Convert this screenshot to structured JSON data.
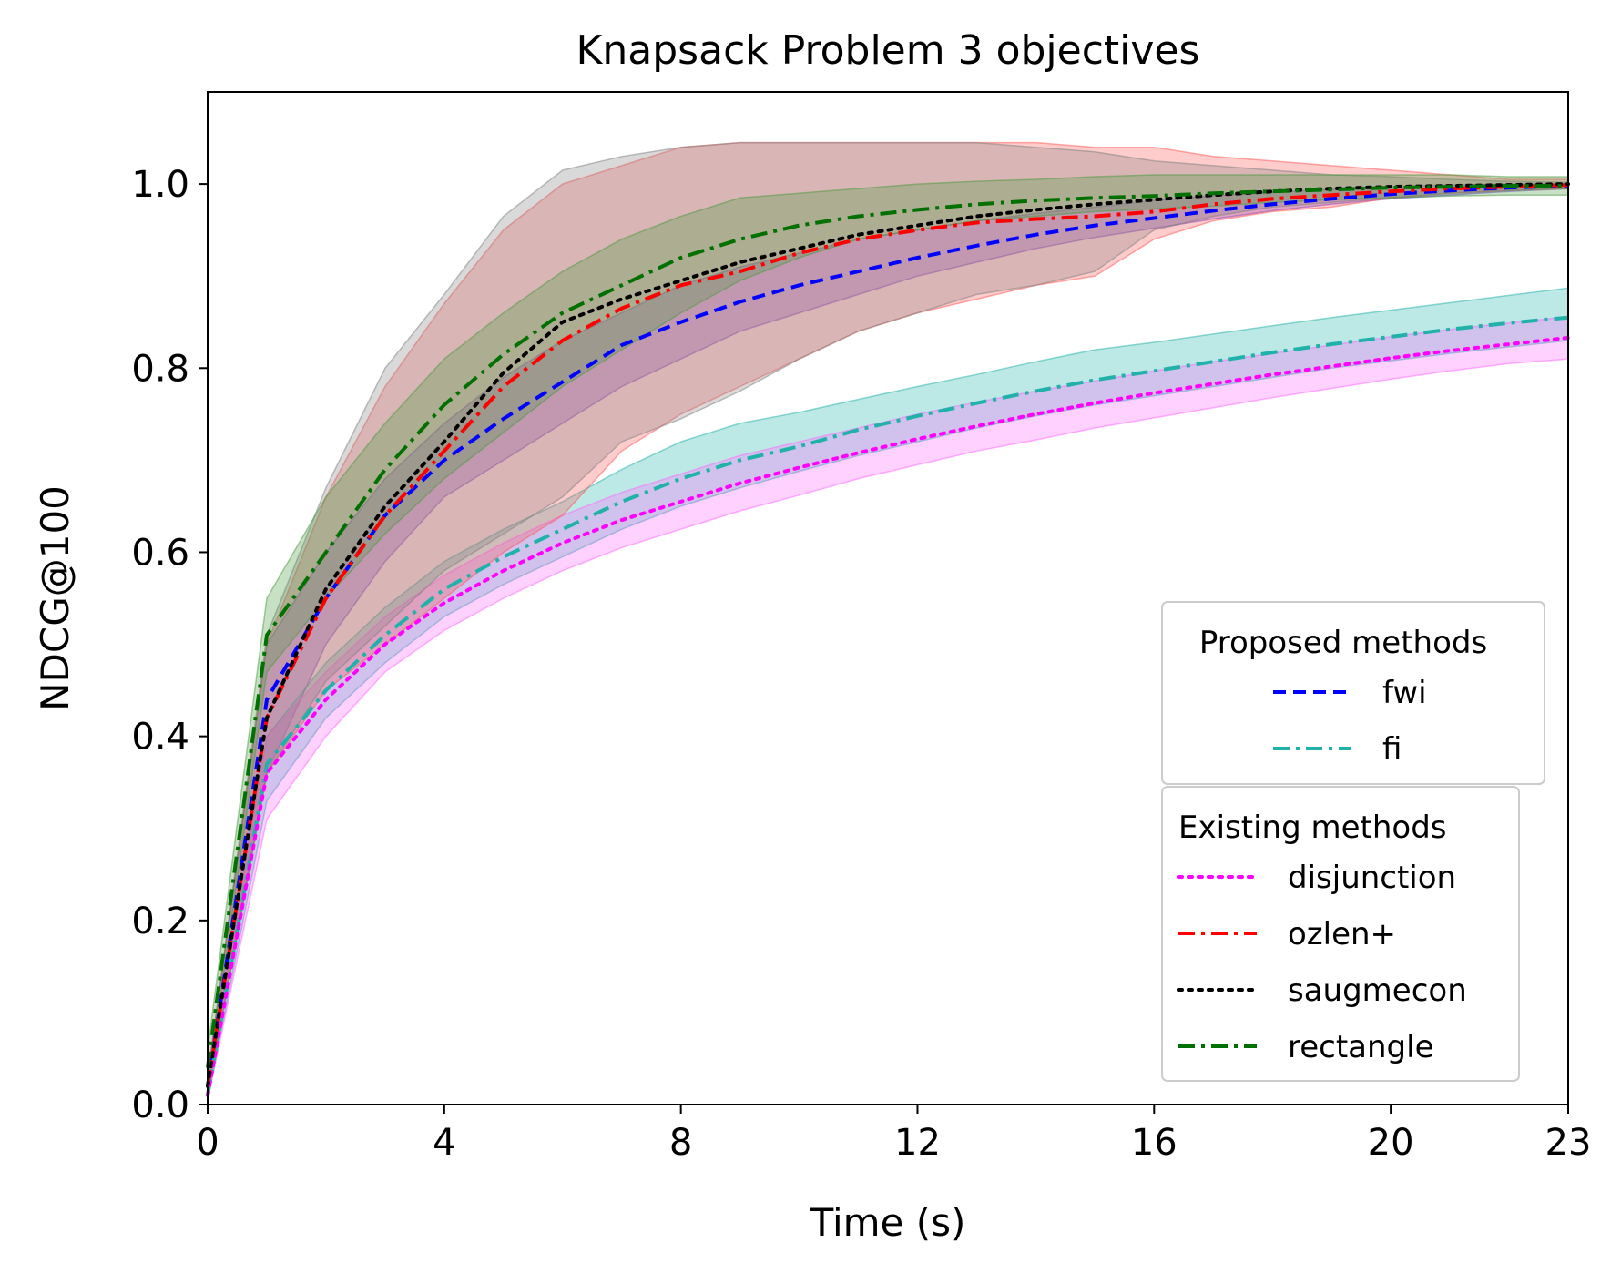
{
  "chart_data": {
    "type": "line",
    "title": "Knapsack Problem 3 objectives",
    "xlabel": "Time (s)",
    "ylabel": "NDCG@100",
    "xlim": [
      0,
      23
    ],
    "ylim": [
      0,
      1.1
    ],
    "xticks": [
      0,
      4,
      8,
      12,
      16,
      20,
      23
    ],
    "yticks": [
      0.0,
      0.2,
      0.4,
      0.6,
      0.8,
      1.0
    ],
    "ytick_labels": [
      "0.0",
      "0.2",
      "0.4",
      "0.6",
      "0.8",
      "1.0"
    ],
    "grid": false,
    "legend_groups": [
      {
        "title": "Proposed methods",
        "placement": "right",
        "entries": [
          "fwi",
          "fi"
        ]
      },
      {
        "title": "Existing methods",
        "placement": "bottom-right",
        "entries": [
          "disjunction",
          "ozlen+",
          "saugmecon",
          "rectangle"
        ]
      }
    ],
    "x": [
      0,
      1,
      2,
      3,
      4,
      5,
      6,
      7,
      8,
      9,
      10,
      11,
      12,
      13,
      14,
      15,
      16,
      17,
      18,
      19,
      20,
      21,
      22,
      23
    ],
    "series": [
      {
        "name": "fwi",
        "color": "#0000ff",
        "dash": "dashed",
        "values": [
          0.02,
          0.44,
          0.55,
          0.64,
          0.7,
          0.745,
          0.785,
          0.825,
          0.85,
          0.872,
          0.89,
          0.905,
          0.92,
          0.933,
          0.945,
          0.955,
          0.963,
          0.971,
          0.978,
          0.984,
          0.989,
          0.993,
          0.996,
          0.998
        ],
        "lower": [
          0.01,
          0.36,
          0.5,
          0.59,
          0.66,
          0.7,
          0.74,
          0.78,
          0.81,
          0.84,
          0.86,
          0.88,
          0.9,
          0.915,
          0.93,
          0.942,
          0.952,
          0.962,
          0.971,
          0.978,
          0.984,
          0.988,
          0.992,
          0.995
        ],
        "upper": [
          0.03,
          0.5,
          0.6,
          0.68,
          0.74,
          0.79,
          0.83,
          0.86,
          0.89,
          0.91,
          0.925,
          0.94,
          0.95,
          0.96,
          0.968,
          0.975,
          0.982,
          0.987,
          0.991,
          0.994,
          0.997,
          0.999,
          1.0,
          1.0
        ],
        "band_color": "#6a3cdc"
      },
      {
        "name": "fi",
        "color": "#20b2aa",
        "dash": "dashdot",
        "values": [
          0.01,
          0.37,
          0.45,
          0.51,
          0.56,
          0.595,
          0.625,
          0.655,
          0.68,
          0.7,
          0.715,
          0.733,
          0.748,
          0.762,
          0.775,
          0.787,
          0.797,
          0.807,
          0.817,
          0.826,
          0.834,
          0.842,
          0.849,
          0.855
        ],
        "lower": [
          0.005,
          0.33,
          0.42,
          0.48,
          0.53,
          0.565,
          0.595,
          0.625,
          0.65,
          0.67,
          0.688,
          0.705,
          0.72,
          0.735,
          0.748,
          0.76,
          0.77,
          0.78,
          0.79,
          0.8,
          0.808,
          0.816,
          0.823,
          0.83
        ],
        "upper": [
          0.02,
          0.4,
          0.48,
          0.54,
          0.59,
          0.625,
          0.655,
          0.69,
          0.72,
          0.74,
          0.752,
          0.766,
          0.78,
          0.793,
          0.807,
          0.82,
          0.828,
          0.837,
          0.846,
          0.855,
          0.863,
          0.871,
          0.879,
          0.887
        ],
        "band_color": "#20b2aa"
      },
      {
        "name": "disjunction",
        "color": "#ff00ff",
        "dash": "dotted",
        "values": [
          0.01,
          0.36,
          0.44,
          0.5,
          0.545,
          0.58,
          0.61,
          0.635,
          0.655,
          0.675,
          0.692,
          0.708,
          0.723,
          0.737,
          0.75,
          0.762,
          0.773,
          0.783,
          0.793,
          0.802,
          0.811,
          0.819,
          0.826,
          0.833
        ],
        "lower": [
          0.005,
          0.31,
          0.4,
          0.47,
          0.515,
          0.55,
          0.58,
          0.605,
          0.625,
          0.645,
          0.662,
          0.68,
          0.695,
          0.71,
          0.722,
          0.735,
          0.746,
          0.757,
          0.768,
          0.778,
          0.788,
          0.797,
          0.805,
          0.81
        ],
        "upper": [
          0.02,
          0.4,
          0.47,
          0.53,
          0.575,
          0.61,
          0.64,
          0.665,
          0.685,
          0.705,
          0.72,
          0.735,
          0.75,
          0.763,
          0.775,
          0.786,
          0.797,
          0.807,
          0.816,
          0.825,
          0.834,
          0.842,
          0.849,
          0.856
        ],
        "band_color": "#ff66ff"
      },
      {
        "name": "ozlen+",
        "color": "#ff0000",
        "dash": "dashdot",
        "values": [
          0.02,
          0.42,
          0.55,
          0.64,
          0.71,
          0.78,
          0.83,
          0.865,
          0.89,
          0.905,
          0.925,
          0.94,
          0.95,
          0.958,
          0.962,
          0.965,
          0.97,
          0.978,
          0.984,
          0.988,
          0.992,
          0.995,
          0.997,
          0.999
        ],
        "lower": [
          0.01,
          0.36,
          0.45,
          0.5,
          0.55,
          0.6,
          0.64,
          0.71,
          0.75,
          0.78,
          0.81,
          0.84,
          0.86,
          0.875,
          0.89,
          0.9,
          0.94,
          0.96,
          0.97,
          0.975,
          0.985,
          0.99,
          0.993,
          0.995
        ],
        "upper": [
          0.03,
          0.5,
          0.66,
          0.78,
          0.87,
          0.95,
          1.0,
          1.02,
          1.04,
          1.045,
          1.045,
          1.045,
          1.045,
          1.045,
          1.045,
          1.04,
          1.04,
          1.03,
          1.025,
          1.02,
          1.015,
          1.01,
          1.005,
          1.005
        ],
        "band_color": "#ff5555"
      },
      {
        "name": "saugmecon",
        "color": "#000000",
        "dash": "dotted",
        "values": [
          0.02,
          0.42,
          0.56,
          0.65,
          0.72,
          0.795,
          0.85,
          0.875,
          0.895,
          0.915,
          0.93,
          0.945,
          0.955,
          0.965,
          0.972,
          0.978,
          0.983,
          0.988,
          0.992,
          0.995,
          0.997,
          0.998,
          0.999,
          1.0
        ],
        "lower": [
          0.01,
          0.36,
          0.46,
          0.52,
          0.58,
          0.62,
          0.66,
          0.72,
          0.745,
          0.775,
          0.81,
          0.84,
          0.86,
          0.88,
          0.89,
          0.905,
          0.95,
          0.965,
          0.975,
          0.98,
          0.985,
          0.99,
          0.993,
          0.995
        ],
        "upper": [
          0.03,
          0.51,
          0.67,
          0.8,
          0.88,
          0.965,
          1.015,
          1.03,
          1.04,
          1.045,
          1.045,
          1.045,
          1.045,
          1.045,
          1.04,
          1.035,
          1.025,
          1.02,
          1.015,
          1.01,
          1.008,
          1.005,
          1.003,
          1.002
        ],
        "band_color": "#808080"
      },
      {
        "name": "rectangle",
        "color": "#007000",
        "dash": "dashdot",
        "values": [
          0.04,
          0.51,
          0.6,
          0.69,
          0.76,
          0.815,
          0.86,
          0.89,
          0.92,
          0.94,
          0.955,
          0.965,
          0.972,
          0.978,
          0.982,
          0.985,
          0.987,
          0.99,
          0.992,
          0.994,
          0.996,
          0.997,
          0.998,
          0.998
        ],
        "lower": [
          0.02,
          0.47,
          0.55,
          0.62,
          0.68,
          0.73,
          0.78,
          0.82,
          0.86,
          0.895,
          0.92,
          0.94,
          0.95,
          0.96,
          0.965,
          0.97,
          0.973,
          0.976,
          0.98,
          0.983,
          0.985,
          0.987,
          0.988,
          0.988
        ],
        "upper": [
          0.06,
          0.55,
          0.66,
          0.74,
          0.81,
          0.86,
          0.905,
          0.94,
          0.965,
          0.985,
          0.99,
          0.995,
          1.0,
          1.003,
          1.005,
          1.008,
          1.01,
          1.01,
          1.01,
          1.01,
          1.01,
          1.01,
          1.008,
          1.008
        ],
        "band_color": "#4a9a40"
      }
    ]
  }
}
